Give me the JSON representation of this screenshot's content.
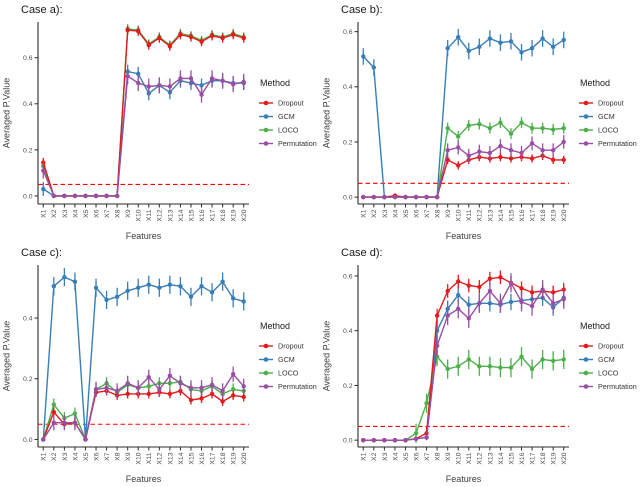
{
  "figure": {
    "background": "#ffffff",
    "axis_color": "#2b2b2b",
    "tick_label_color": "#4d4d4d",
    "axis_title_color": "#404040",
    "title_color": "#1a1a1a",
    "threshold_color": "#ff0000",
    "series_colors": {
      "Dropout": "#e41a1c",
      "GCM": "#377eb8",
      "LOCO": "#4daf4a",
      "Permutation": "#984ea3"
    }
  },
  "chart_data": [
    {
      "type": "line",
      "title": "Case a):",
      "xlabel": "Features",
      "ylabel": "Averaged P.Value",
      "legend_title": "Method",
      "legend_position": "right",
      "grid": false,
      "threshold": 0.05,
      "categories": [
        "X1",
        "X2",
        "X3",
        "X4",
        "X5",
        "X6",
        "X7",
        "X8",
        "X9",
        "X10",
        "X11",
        "X12",
        "X13",
        "X14",
        "X15",
        "X16",
        "X17",
        "X18",
        "X19",
        "X20"
      ],
      "yticks": [
        0.0,
        0.2,
        0.4,
        0.6
      ],
      "ylim": [
        -0.035,
        0.755
      ],
      "series": [
        {
          "name": "Dropout",
          "color": "#e41a1c",
          "err": 0.02,
          "values": [
            0.145,
            0,
            0,
            0,
            0,
            0,
            0,
            0,
            0.72,
            0.715,
            0.655,
            0.685,
            0.65,
            0.7,
            0.69,
            0.67,
            0.695,
            0.685,
            0.7,
            0.685
          ]
        },
        {
          "name": "GCM",
          "color": "#377eb8",
          "err": 0.03,
          "values": [
            0.03,
            0,
            0,
            0,
            0,
            0,
            0,
            0,
            0.54,
            0.53,
            0.445,
            0.48,
            0.45,
            0.5,
            0.49,
            0.48,
            0.5,
            0.5,
            0.49,
            0.49
          ]
        },
        {
          "name": "LOCO",
          "color": "#4daf4a",
          "err": 0.02,
          "values": [
            0.13,
            0,
            0,
            0,
            0,
            0,
            0,
            0,
            0.725,
            0.72,
            0.66,
            0.69,
            0.655,
            0.705,
            0.695,
            0.675,
            0.7,
            0.69,
            0.705,
            0.69
          ]
        },
        {
          "name": "Permutation",
          "color": "#984ea3",
          "err": 0.035,
          "values": [
            0.11,
            0,
            0,
            0,
            0,
            0,
            0,
            0,
            0.52,
            0.49,
            0.475,
            0.48,
            0.475,
            0.51,
            0.51,
            0.44,
            0.51,
            0.5,
            0.485,
            0.495
          ]
        }
      ]
    },
    {
      "type": "line",
      "title": "Case b):",
      "xlabel": "Features",
      "ylabel": "Averaged P.Value",
      "legend_title": "Method",
      "legend_position": "right",
      "grid": false,
      "threshold": 0.05,
      "categories": [
        "X1",
        "X2",
        "X3",
        "X4",
        "X5",
        "X6",
        "X7",
        "X8",
        "X9",
        "X10",
        "X11",
        "X12",
        "X13",
        "X14",
        "X15",
        "X16",
        "X17",
        "X18",
        "X19",
        "X20"
      ],
      "yticks": [
        0.0,
        0.2,
        0.4,
        0.6
      ],
      "ylim": [
        -0.025,
        0.635
      ],
      "series": [
        {
          "name": "Dropout",
          "color": "#e41a1c",
          "err": 0.015,
          "values": [
            0,
            0,
            0,
            0.005,
            0,
            0,
            0,
            0,
            0.135,
            0.115,
            0.135,
            0.145,
            0.14,
            0.145,
            0.14,
            0.145,
            0.14,
            0.15,
            0.135,
            0.135
          ]
        },
        {
          "name": "GCM",
          "color": "#377eb8",
          "err": 0.03,
          "values": [
            0.51,
            0.47,
            0,
            0,
            0,
            0,
            0,
            0,
            0.54,
            0.58,
            0.53,
            0.545,
            0.575,
            0.56,
            0.565,
            0.525,
            0.54,
            0.575,
            0.545,
            0.57
          ]
        },
        {
          "name": "LOCO",
          "color": "#4daf4a",
          "err": 0.02,
          "values": [
            0,
            0,
            0,
            0,
            0,
            0,
            0,
            0,
            0.25,
            0.22,
            0.26,
            0.265,
            0.25,
            0.27,
            0.23,
            0.27,
            0.25,
            0.25,
            0.245,
            0.25
          ]
        },
        {
          "name": "Permutation",
          "color": "#984ea3",
          "err": 0.025,
          "values": [
            0,
            0,
            0,
            0,
            0,
            0,
            0,
            0,
            0.17,
            0.18,
            0.15,
            0.165,
            0.16,
            0.185,
            0.17,
            0.16,
            0.195,
            0.17,
            0.17,
            0.2
          ]
        }
      ]
    },
    {
      "type": "line",
      "title": "Case c):",
      "xlabel": "Features",
      "ylabel": "Averaged P.Value",
      "legend_title": "Method",
      "legend_position": "right",
      "grid": false,
      "threshold": 0.05,
      "categories": [
        "X1",
        "X2",
        "X3",
        "X4",
        "X5",
        "X6",
        "X7",
        "X8",
        "X9",
        "X10",
        "X11",
        "X12",
        "X13",
        "X14",
        "X15",
        "X16",
        "X17",
        "X18",
        "X19",
        "X20"
      ],
      "yticks": [
        0.0,
        0.2,
        0.4
      ],
      "ylim": [
        -0.025,
        0.575
      ],
      "series": [
        {
          "name": "Dropout",
          "color": "#e41a1c",
          "err": 0.015,
          "values": [
            0,
            0.09,
            0.05,
            0.055,
            0,
            0.155,
            0.16,
            0.145,
            0.15,
            0.15,
            0.15,
            0.155,
            0.15,
            0.16,
            0.13,
            0.135,
            0.15,
            0.125,
            0.145,
            0.14
          ]
        },
        {
          "name": "GCM",
          "color": "#377eb8",
          "err": 0.03,
          "values": [
            0,
            0.505,
            0.535,
            0.52,
            0,
            0.5,
            0.46,
            0.47,
            0.49,
            0.5,
            0.51,
            0.5,
            0.51,
            0.505,
            0.47,
            0.505,
            0.485,
            0.52,
            0.465,
            0.455
          ]
        },
        {
          "name": "LOCO",
          "color": "#4daf4a",
          "err": 0.02,
          "values": [
            0,
            0.115,
            0.07,
            0.085,
            0,
            0.165,
            0.185,
            0.155,
            0.18,
            0.17,
            0.175,
            0.185,
            0.185,
            0.19,
            0.165,
            0.16,
            0.175,
            0.15,
            0.165,
            0.16
          ]
        },
        {
          "name": "Permutation",
          "color": "#984ea3",
          "err": 0.025,
          "values": [
            0,
            0.055,
            0.055,
            0.055,
            0,
            0.165,
            0.17,
            0.16,
            0.185,
            0.17,
            0.205,
            0.165,
            0.21,
            0.185,
            0.17,
            0.17,
            0.18,
            0.16,
            0.215,
            0.175
          ]
        }
      ]
    },
    {
      "type": "line",
      "title": "Case d):",
      "xlabel": "Features",
      "ylabel": "Averaged P.Value",
      "legend_title": "Method",
      "legend_position": "right",
      "grid": false,
      "threshold": 0.05,
      "categories": [
        "X1",
        "X2",
        "X3",
        "X4",
        "X5",
        "X6",
        "X7",
        "X8",
        "X9",
        "X10",
        "X11",
        "X12",
        "X13",
        "X14",
        "X15",
        "X16",
        "X17",
        "X18",
        "X19",
        "X20"
      ],
      "yticks": [
        0.0,
        0.2,
        0.4,
        0.6
      ],
      "ylim": [
        -0.025,
        0.64
      ],
      "series": [
        {
          "name": "Dropout",
          "color": "#e41a1c",
          "err": 0.025,
          "values": [
            0,
            0,
            0,
            0,
            0,
            0.005,
            0.025,
            0.455,
            0.545,
            0.58,
            0.565,
            0.56,
            0.59,
            0.595,
            0.575,
            0.555,
            0.54,
            0.545,
            0.54,
            0.55
          ]
        },
        {
          "name": "GCM",
          "color": "#377eb8",
          "err": 0.03,
          "values": [
            0,
            0,
            0,
            0,
            0,
            0.005,
            0.01,
            0.4,
            0.48,
            0.53,
            0.495,
            0.5,
            0.5,
            0.495,
            0.505,
            0.51,
            0.515,
            0.52,
            0.485,
            0.52
          ]
        },
        {
          "name": "LOCO",
          "color": "#4daf4a",
          "err": 0.035,
          "values": [
            0,
            0,
            0,
            0,
            0,
            0.025,
            0.135,
            0.305,
            0.26,
            0.27,
            0.295,
            0.27,
            0.27,
            0.265,
            0.265,
            0.305,
            0.26,
            0.295,
            0.29,
            0.295
          ]
        },
        {
          "name": "Permutation",
          "color": "#984ea3",
          "err": 0.035,
          "values": [
            0,
            0,
            0,
            0,
            0,
            0.005,
            0.01,
            0.345,
            0.455,
            0.48,
            0.445,
            0.5,
            0.545,
            0.5,
            0.575,
            0.505,
            0.49,
            0.55,
            0.5,
            0.515
          ]
        }
      ]
    }
  ]
}
